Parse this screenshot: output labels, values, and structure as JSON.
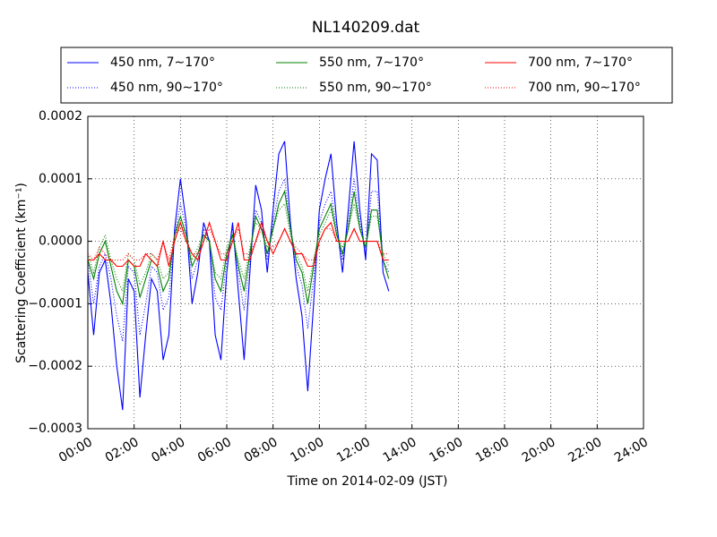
{
  "chart_data": {
    "type": "line",
    "title": "NL140209.dat",
    "x_label": "Time on 2014-02-09 (JST)",
    "y_label": "Scattering Coefficient (km⁻¹)",
    "x": [
      0,
      0.25,
      0.5,
      0.75,
      1,
      1.25,
      1.5,
      1.75,
      2,
      2.25,
      2.5,
      2.75,
      3,
      3.25,
      3.5,
      3.75,
      4,
      4.25,
      4.5,
      4.75,
      5,
      5.25,
      5.5,
      5.75,
      6,
      6.25,
      6.5,
      6.75,
      7,
      7.25,
      7.5,
      7.75,
      8,
      8.25,
      8.5,
      8.75,
      9,
      9.25,
      9.5,
      9.75,
      10,
      10.25,
      10.5,
      10.75,
      11,
      11.25,
      11.5,
      11.75,
      12,
      12.25,
      12.5,
      12.75,
      13
    ],
    "series": [
      {
        "name": "450 nm, 7∼170°",
        "color": "#0000ff",
        "linestyle": "solid",
        "values": [
          -5e-05,
          -0.00015,
          -5e-05,
          -3e-05,
          -0.0001,
          -0.0002,
          -0.00027,
          -6e-05,
          -8e-05,
          -0.00025,
          -0.00015,
          -6e-05,
          -8e-05,
          -0.00019,
          -0.00015,
          2e-05,
          0.0001,
          3e-05,
          -0.0001,
          -5e-05,
          3e-05,
          0,
          -0.00015,
          -0.00019,
          -5e-05,
          3e-05,
          -8e-05,
          -0.00019,
          -5e-05,
          9e-05,
          5e-05,
          -5e-05,
          5e-05,
          0.00014,
          0.00016,
          3e-05,
          -6e-05,
          -0.00012,
          -0.00024,
          -0.0001,
          5e-05,
          0.0001,
          0.00014,
          3e-05,
          -5e-05,
          5e-05,
          0.00016,
          5e-05,
          -3e-05,
          0.00014,
          0.00013,
          -5e-05,
          -8e-05
        ]
      },
      {
        "name": "450 nm, 90∼170°",
        "color": "#0000ff",
        "linestyle": "dotted",
        "values": [
          -3e-05,
          -0.0001,
          -4e-05,
          -2e-05,
          -6e-05,
          -0.00012,
          -0.00016,
          -4e-05,
          -5e-05,
          -0.00015,
          -0.0001,
          -4e-05,
          -5e-05,
          -0.00011,
          -9e-05,
          1e-05,
          6e-05,
          2e-05,
          -6e-05,
          -3e-05,
          2e-05,
          0,
          -9e-05,
          -0.00011,
          -3e-05,
          2e-05,
          -5e-05,
          -0.00011,
          -3e-05,
          5e-05,
          3e-05,
          -3e-05,
          3e-05,
          8e-05,
          0.0001,
          2e-05,
          -4e-05,
          -7e-05,
          -0.00014,
          -6e-05,
          3e-05,
          6e-05,
          8e-05,
          2e-05,
          -3e-05,
          3e-05,
          0.0001,
          3e-05,
          -2e-05,
          8e-05,
          8e-05,
          -3e-05,
          -5e-05
        ]
      },
      {
        "name": "550 nm, 7∼170°",
        "color": "#008000",
        "linestyle": "solid",
        "values": [
          -3e-05,
          -6e-05,
          -2e-05,
          0,
          -4e-05,
          -8e-05,
          -0.0001,
          -3e-05,
          -4e-05,
          -9e-05,
          -6e-05,
          -3e-05,
          -4e-05,
          -8e-05,
          -6e-05,
          1e-05,
          4e-05,
          1e-05,
          -4e-05,
          -2e-05,
          1e-05,
          0,
          -6e-05,
          -8e-05,
          -2e-05,
          1e-05,
          -4e-05,
          -8e-05,
          -2e-05,
          4e-05,
          2e-05,
          -2e-05,
          2e-05,
          6e-05,
          8e-05,
          2e-05,
          -3e-05,
          -5e-05,
          -0.0001,
          -4e-05,
          2e-05,
          4e-05,
          6e-05,
          1e-05,
          -2e-05,
          2e-05,
          8e-05,
          2e-05,
          -1e-05,
          5e-05,
          5e-05,
          -3e-05,
          -6e-05
        ]
      },
      {
        "name": "550 nm, 90∼170°",
        "color": "#008000",
        "linestyle": "dotted",
        "values": [
          -2e-05,
          -5e-05,
          -1e-05,
          1e-05,
          -3e-05,
          -6e-05,
          -8e-05,
          -2e-05,
          -3e-05,
          -7e-05,
          -5e-05,
          -2e-05,
          -3e-05,
          -6e-05,
          -5e-05,
          1e-05,
          3e-05,
          1e-05,
          -3e-05,
          -1e-05,
          1e-05,
          0,
          -5e-05,
          -6e-05,
          -1e-05,
          1e-05,
          -3e-05,
          -6e-05,
          -1e-05,
          3e-05,
          2e-05,
          -1e-05,
          2e-05,
          5e-05,
          6e-05,
          1e-05,
          -2e-05,
          -4e-05,
          -8e-05,
          -3e-05,
          1e-05,
          3e-05,
          5e-05,
          1e-05,
          -1e-05,
          2e-05,
          6e-05,
          2e-05,
          -1e-05,
          4e-05,
          4e-05,
          -2e-05,
          -4e-05
        ]
      },
      {
        "name": "700 nm, 7∼170°",
        "color": "#ff0000",
        "linestyle": "solid",
        "values": [
          -3e-05,
          -3e-05,
          -2e-05,
          -3e-05,
          -3e-05,
          -4e-05,
          -4e-05,
          -3e-05,
          -4e-05,
          -4e-05,
          -2e-05,
          -3e-05,
          -4e-05,
          0,
          -4e-05,
          0,
          3e-05,
          0,
          -2e-05,
          -3e-05,
          0,
          3e-05,
          0,
          -3e-05,
          -3e-05,
          0,
          3e-05,
          -3e-05,
          -3e-05,
          0,
          3e-05,
          0,
          -2e-05,
          0,
          2e-05,
          0,
          -2e-05,
          -2e-05,
          -4e-05,
          -4e-05,
          0,
          2e-05,
          3e-05,
          0,
          0,
          0,
          2e-05,
          0,
          0,
          0,
          0,
          -3e-05,
          -3e-05
        ]
      },
      {
        "name": "700 nm, 90∼170°",
        "color": "#ff0000",
        "linestyle": "dotted",
        "values": [
          -2e-05,
          -3e-05,
          -1e-05,
          -2e-05,
          -3e-05,
          -3e-05,
          -3e-05,
          -2e-05,
          -3e-05,
          -3e-05,
          -2e-05,
          -2e-05,
          -3e-05,
          0,
          -3e-05,
          1e-05,
          2e-05,
          0,
          -2e-05,
          -2e-05,
          0,
          2e-05,
          0,
          -2e-05,
          -2e-05,
          0,
          2e-05,
          -2e-05,
          -2e-05,
          0,
          2e-05,
          0,
          -1e-05,
          0,
          2e-05,
          0,
          -1e-05,
          -2e-05,
          -3e-05,
          -3e-05,
          0,
          2e-05,
          2e-05,
          0,
          0,
          0,
          2e-05,
          0,
          0,
          0,
          0,
          -2e-05,
          -2e-05
        ]
      }
    ],
    "xlim": [
      0,
      24
    ],
    "xticks": [
      {
        "value": 0,
        "label": "00:00"
      },
      {
        "value": 2,
        "label": "02:00"
      },
      {
        "value": 4,
        "label": "04:00"
      },
      {
        "value": 6,
        "label": "06:00"
      },
      {
        "value": 8,
        "label": "08:00"
      },
      {
        "value": 10,
        "label": "10:00"
      },
      {
        "value": 12,
        "label": "12:00"
      },
      {
        "value": 14,
        "label": "14:00"
      },
      {
        "value": 16,
        "label": "16:00"
      },
      {
        "value": 18,
        "label": "18:00"
      },
      {
        "value": 20,
        "label": "20:00"
      },
      {
        "value": 22,
        "label": "22:00"
      },
      {
        "value": 24,
        "label": "24:00"
      }
    ],
    "ylim": [
      -0.0003,
      0.0002
    ],
    "yticks": [
      {
        "value": -0.0003,
        "label": "−0.0003"
      },
      {
        "value": -0.0002,
        "label": "−0.0002"
      },
      {
        "value": -0.0001,
        "label": "−0.0001"
      },
      {
        "value": 0,
        "label": "0.0000"
      },
      0.0001,
      0.0002
    ],
    "grid": true,
    "legend": "top"
  }
}
